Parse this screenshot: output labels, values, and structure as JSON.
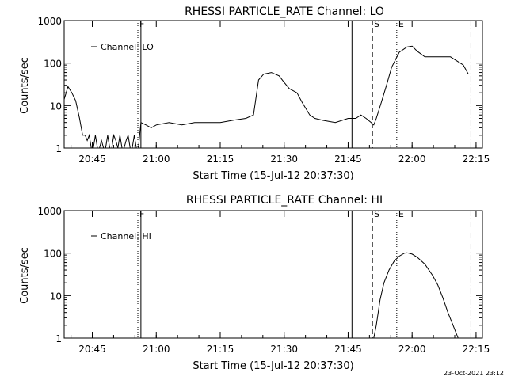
{
  "footer": "23-Oct-2021 23:12",
  "chart_data": [
    {
      "type": "line",
      "title": "RHESSI PARTICLE_RATE Channel: LO",
      "xlabel": "Start Time (15-Jul-12 20:37:30)",
      "ylabel": "Counts/sec",
      "y_scale": "log",
      "ylim": [
        1,
        1000
      ],
      "xlim": [
        20.64,
        22.275
      ],
      "x_ticks": [
        {
          "v": 20.75,
          "label": "20:45"
        },
        {
          "v": 21.0,
          "label": "21:00"
        },
        {
          "v": 21.25,
          "label": "21:15"
        },
        {
          "v": 21.5,
          "label": "21:30"
        },
        {
          "v": 21.75,
          "label": "21:45"
        },
        {
          "v": 22.0,
          "label": "22:00"
        },
        {
          "v": 22.25,
          "label": "22:15"
        }
      ],
      "y_ticks": [
        {
          "v": 1,
          "label": "1"
        },
        {
          "v": 10,
          "label": "10"
        },
        {
          "v": 100,
          "label": "100"
        },
        {
          "v": 1000,
          "label": "1000"
        }
      ],
      "legend": {
        "entries": [
          "Channel: LO"
        ],
        "position": "top-left"
      },
      "markers": [
        {
          "x": 20.928,
          "style": "dotted",
          "label": "F"
        },
        {
          "x": 20.94,
          "style": "solid",
          "label": ""
        },
        {
          "x": 21.765,
          "style": "solid",
          "label": ""
        },
        {
          "x": 21.845,
          "style": "dashed",
          "label": "S"
        },
        {
          "x": 21.94,
          "style": "dotted",
          "label": "E"
        },
        {
          "x": 22.23,
          "style": "dashdot",
          "label": ""
        }
      ],
      "series": [
        {
          "name": "Channel: LO",
          "x": [
            20.64,
            20.655,
            20.67,
            20.685,
            20.7,
            20.712,
            20.722,
            20.73,
            20.738,
            20.746,
            20.754,
            20.762,
            20.77,
            20.778,
            20.786,
            20.794,
            20.802,
            20.81,
            20.818,
            20.826,
            20.834,
            20.842,
            20.85,
            20.858,
            20.866,
            20.874,
            20.882,
            20.89,
            20.898,
            20.906,
            20.914,
            20.922,
            20.93,
            20.94,
            20.96,
            20.98,
            21.0,
            21.05,
            21.1,
            21.15,
            21.2,
            21.25,
            21.3,
            21.35,
            21.38,
            21.4,
            21.42,
            21.45,
            21.48,
            21.5,
            21.52,
            21.55,
            21.57,
            21.6,
            21.62,
            21.65,
            21.7,
            21.75,
            21.78,
            21.8,
            21.82,
            21.84,
            21.85,
            21.86,
            21.88,
            21.9,
            21.92,
            21.95,
            21.98,
            22.0,
            22.02,
            22.05,
            22.1,
            22.15,
            22.2,
            22.22
          ],
          "values": [
            14,
            28,
            20,
            13,
            5,
            2,
            2,
            1.5,
            2,
            1,
            1,
            2,
            1,
            1,
            1.5,
            1,
            1,
            2,
            1,
            1,
            2,
            1.5,
            1,
            2,
            1,
            1,
            1.5,
            2,
            1,
            1,
            2,
            1,
            1,
            4,
            3.5,
            3,
            3.5,
            4,
            3.5,
            4,
            4,
            4,
            4.5,
            5,
            6,
            40,
            55,
            60,
            50,
            35,
            25,
            20,
            12,
            6,
            5,
            4.5,
            4,
            5,
            5,
            6,
            5,
            4,
            3.5,
            5,
            12,
            30,
            80,
            180,
            240,
            250,
            190,
            140,
            140,
            140,
            90,
            55
          ]
        }
      ]
    },
    {
      "type": "line",
      "title": "RHESSI PARTICLE_RATE Channel: HI",
      "xlabel": "Start Time (15-Jul-12 20:37:30)",
      "ylabel": "Counts/sec",
      "y_scale": "log",
      "ylim": [
        1,
        1000
      ],
      "xlim": [
        20.64,
        22.275
      ],
      "x_ticks": [
        {
          "v": 20.75,
          "label": "20:45"
        },
        {
          "v": 21.0,
          "label": "21:00"
        },
        {
          "v": 21.25,
          "label": "21:15"
        },
        {
          "v": 21.5,
          "label": "21:30"
        },
        {
          "v": 21.75,
          "label": "21:45"
        },
        {
          "v": 22.0,
          "label": "22:00"
        },
        {
          "v": 22.25,
          "label": "22:15"
        }
      ],
      "y_ticks": [
        {
          "v": 1,
          "label": "1"
        },
        {
          "v": 10,
          "label": "10"
        },
        {
          "v": 100,
          "label": "100"
        },
        {
          "v": 1000,
          "label": "1000"
        }
      ],
      "legend": {
        "entries": [
          "Channel: HI"
        ],
        "position": "top-left"
      },
      "markers": [
        {
          "x": 20.928,
          "style": "dotted",
          "label": "F"
        },
        {
          "x": 20.94,
          "style": "solid",
          "label": ""
        },
        {
          "x": 21.765,
          "style": "solid",
          "label": ""
        },
        {
          "x": 21.845,
          "style": "dashed",
          "label": "S"
        },
        {
          "x": 21.94,
          "style": "dotted",
          "label": "E"
        },
        {
          "x": 22.23,
          "style": "dashdot",
          "label": ""
        }
      ],
      "series": [
        {
          "name": "Channel: HI",
          "x": [
            21.85,
            21.86,
            21.875,
            21.89,
            21.91,
            21.93,
            21.95,
            21.97,
            21.98,
            22.0,
            22.02,
            22.05,
            22.08,
            22.1,
            22.12,
            22.14,
            22.16,
            22.18
          ],
          "values": [
            1,
            2,
            8,
            20,
            40,
            65,
            85,
            100,
            102,
            95,
            80,
            55,
            30,
            18,
            9,
            4,
            2,
            1
          ]
        }
      ]
    }
  ]
}
